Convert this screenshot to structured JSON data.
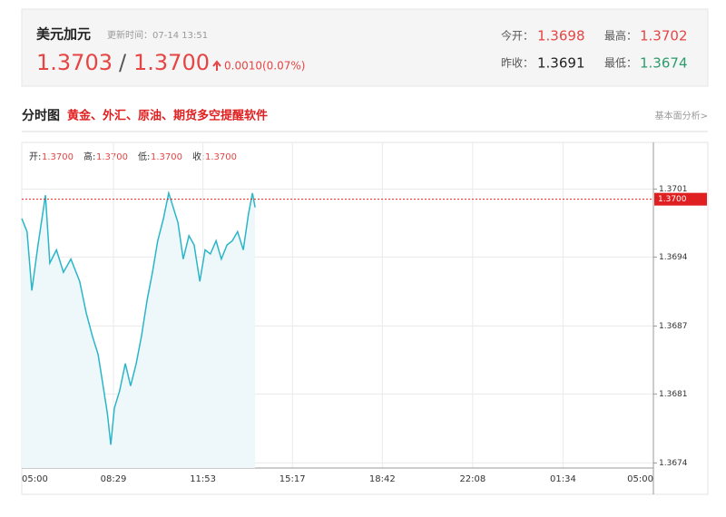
{
  "header": {
    "title": "美元加元",
    "update_time": "更新时间：07-14 13:51",
    "price_bid": "1.3703",
    "separator": "/",
    "price_ask": "1.3700",
    "change": "0.0010(0.07%)",
    "stats": [
      {
        "label": "今开：",
        "value": "1.3698"
      },
      {
        "label": "最高：",
        "value": "1.3702"
      },
      {
        "label": "昨收：",
        "value": "1.3691"
      },
      {
        "label": "最低：",
        "value": "1.3674"
      }
    ]
  },
  "section": {
    "title": "分时图",
    "promo": "黄金、外汇、原油、期货多空提醒软件",
    "link": "基本面分析>"
  },
  "info": [
    {
      "label": "开:",
      "value": "1.3700"
    },
    {
      "label": "高:",
      "value": "1.3700"
    },
    {
      "label": "低:",
      "value": "1.3700"
    },
    {
      "label": "收:",
      "value": "1.3700"
    }
  ],
  "chart_data": {
    "type": "line",
    "color": "#2ab5c8",
    "area_color": "#eef8fb",
    "grid": true,
    "xlim": [
      0,
      1440
    ],
    "xticks": [
      {
        "value": 0,
        "label": "05:00"
      },
      {
        "value": 209,
        "label": "08:29"
      },
      {
        "value": 413,
        "label": "11:53"
      },
      {
        "value": 617,
        "label": "15:17"
      },
      {
        "value": 822,
        "label": "18:42"
      },
      {
        "value": 1028,
        "label": "22:08"
      },
      {
        "value": 1234,
        "label": "01:34"
      },
      {
        "value": 1440,
        "label": "05:00"
      }
    ],
    "ylim": [
      1.36735,
      1.37056
    ],
    "yticks": [
      1.3674,
      {
        "value": 1.36808,
        "label": "1.3681"
      },
      {
        "value": 1.36875,
        "label": "1.3687"
      },
      {
        "value": 1.36943,
        "label": "1.3694"
      },
      1.3701
    ],
    "current": {
      "value": 1.37,
      "label": "1.3700",
      "color": "#e02020"
    },
    "x": [
      0,
      12,
      23,
      37,
      54,
      64,
      79,
      95,
      112,
      132,
      147,
      161,
      174,
      184,
      195,
      203,
      211,
      223,
      236,
      248,
      261,
      273,
      286,
      298,
      310,
      323,
      335,
      343,
      356,
      368,
      381,
      393,
      406,
      418,
      430,
      443,
      455,
      468,
      480,
      492,
      505,
      517,
      526,
      532
    ],
    "values": [
      1.36981,
      1.36968,
      1.3691,
      1.36955,
      1.37004,
      1.36937,
      1.3695,
      1.36928,
      1.36941,
      1.36919,
      1.36888,
      1.36865,
      1.36847,
      1.3682,
      1.36789,
      1.36758,
      1.36794,
      1.36811,
      1.36838,
      1.36816,
      1.36838,
      1.36865,
      1.36901,
      1.36928,
      1.36959,
      1.36981,
      1.37006,
      1.36995,
      1.36977,
      1.36941,
      1.36964,
      1.36955,
      1.36919,
      1.3695,
      1.36946,
      1.36959,
      1.36941,
      1.36955,
      1.36959,
      1.36968,
      1.3695,
      1.36986,
      1.37006,
      1.36992
    ]
  }
}
